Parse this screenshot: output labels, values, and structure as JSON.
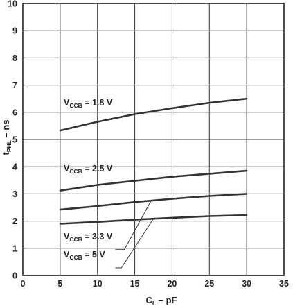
{
  "chart_data": {
    "type": "line",
    "xlabel": "C",
    "xlabel_sub": "L",
    "xlabel_suffix": " – pF",
    "ylabel": "t",
    "ylabel_sub": "PHL",
    "ylabel_suffix": " – ns",
    "xlim": [
      0,
      35
    ],
    "ylim": [
      0,
      10
    ],
    "x_ticks": [
      "0",
      "5",
      "10",
      "15",
      "20",
      "25",
      "30",
      "35"
    ],
    "y_ticks": [
      "0",
      "1",
      "2",
      "3",
      "4",
      "5",
      "6",
      "7",
      "8",
      "9",
      "10"
    ],
    "grid": true,
    "legend": "none (inline labels)",
    "series": [
      {
        "name": "V_CCB = 1.8 V",
        "x": [
          5,
          10,
          15,
          20,
          25,
          30
        ],
        "y": [
          5.33,
          5.65,
          5.93,
          6.15,
          6.35,
          6.5
        ]
      },
      {
        "name": "V_CCB = 2.5 V",
        "x": [
          5,
          10,
          15,
          20,
          25,
          30
        ],
        "y": [
          3.12,
          3.33,
          3.48,
          3.63,
          3.74,
          3.85
        ]
      },
      {
        "name": "V_CCB = 3.3 V",
        "x": [
          5,
          10,
          15,
          20,
          25,
          30
        ],
        "y": [
          2.42,
          2.55,
          2.7,
          2.82,
          2.92,
          3.0
        ]
      },
      {
        "name": "V_CCB = 5 V",
        "x": [
          5,
          10,
          15,
          20,
          25,
          30
        ],
        "y": [
          1.9,
          1.97,
          2.05,
          2.12,
          2.18,
          2.22
        ]
      }
    ],
    "annotations": [
      {
        "main": "V",
        "sub": "CCB",
        "rest": " = 1.8 V"
      },
      {
        "main": "V",
        "sub": "CCB",
        "rest": " = 2.5 V"
      },
      {
        "main": "V",
        "sub": "CCB",
        "rest": " = 3.3 V"
      },
      {
        "main": "V",
        "sub": "CCB",
        "rest": " = 5 V"
      }
    ]
  }
}
